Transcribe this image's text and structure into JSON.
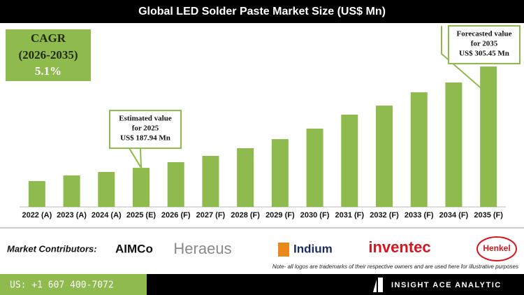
{
  "chart_data": {
    "type": "bar",
    "title": "Global LED Solder Paste Market Size (US$ Mn)",
    "categories": [
      "2022 (A)",
      "2023 (A)",
      "2024 (A)",
      "2025 (E)",
      "2026 (F)",
      "2027 (F)",
      "2028 (F)",
      "2029 (F)",
      "2030 (F)",
      "2031 (F)",
      "2032 (F)",
      "2033 (F)",
      "2034 (F)",
      "2035 (F)"
    ],
    "values": [
      172.6,
      179.1,
      183.1,
      187.94,
      194.5,
      201.8,
      210.7,
      221.2,
      233.4,
      249.6,
      260.1,
      275.5,
      286.9,
      305.45
    ],
    "value_labels": [
      null,
      null,
      null,
      "US$ 187.94 Mn",
      null,
      null,
      null,
      null,
      null,
      null,
      null,
      null,
      null,
      "US$ 305.45 Mn"
    ],
    "annotations": [
      [
        "Estimated value",
        "for 2025"
      ],
      [
        "Forecasted value",
        "for 2035"
      ]
    ],
    "color": "#8fba4e",
    "ylim": [
      142.6,
      325
    ]
  },
  "cagr": {
    "label": "CAGR",
    "period": "(2026-2035)",
    "value": "5.1%"
  },
  "footer": {
    "contributors_label": "Market Contributors:",
    "logos": [
      "AIMCo",
      "Heraeus",
      "Indium",
      "inventec",
      "Henkel"
    ],
    "note": "Note- all logos are trademarks of their respective owners and are used here for illustrative purposes",
    "phone": "US: +1 607 400-7072",
    "brand": "INSIGHT ACE ANALYTIC"
  }
}
